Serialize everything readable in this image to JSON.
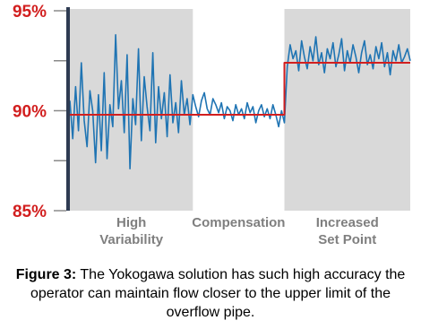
{
  "chart_data": {
    "type": "line",
    "xlim": [
      0,
      119
    ],
    "ylim": [
      85,
      95
    ],
    "yticks": [
      {
        "value": 85,
        "label": "85%"
      },
      {
        "value": 90,
        "label": "90%"
      },
      {
        "value": 95,
        "label": "95%"
      }
    ],
    "minor_yticks": [
      87.5,
      92.5
    ],
    "tick_label_color": "#d21f1f",
    "axis_color": "#2e3b52",
    "shade_color": "#d9d9d9",
    "region_label_color": "#7f7f7f",
    "regions": [
      {
        "label": [
          "High",
          "Variability"
        ],
        "start": 0,
        "end": 43,
        "shaded": true
      },
      {
        "label": [
          "Compensation"
        ],
        "start": 43,
        "end": 75,
        "shaded": false
      },
      {
        "label": [
          "Increased",
          "Set Point"
        ],
        "start": 75,
        "end": 119,
        "shaded": true
      }
    ],
    "series": [
      {
        "color": "#1f74b3",
        "values": [
          90.5,
          88.6,
          91.2,
          89.0,
          92.4,
          89.5,
          88.2,
          91.0,
          90.0,
          87.4,
          90.8,
          88.0,
          91.9,
          87.6,
          90.3,
          89.2,
          93.8,
          90.1,
          91.5,
          88.9,
          92.8,
          87.1,
          90.6,
          89.3,
          93.1,
          88.5,
          91.7,
          90.2,
          89.0,
          92.9,
          88.4,
          91.2,
          89.6,
          90.9,
          88.7,
          91.8,
          89.4,
          90.4,
          88.9,
          91.5,
          89.8,
          90.6,
          89.3,
          90.8,
          90.2,
          89.7,
          90.5,
          90.9,
          90.1,
          89.8,
          90.6,
          90.3,
          89.9,
          90.4,
          89.6,
          90.2,
          90.0,
          89.5,
          90.3,
          89.8,
          90.1,
          89.6,
          90.4,
          89.9,
          90.2,
          89.4,
          90.0,
          90.3,
          89.7,
          90.1,
          89.6,
          90.3,
          89.8,
          89.2,
          90.0,
          89.4,
          92.2,
          93.3,
          92.6,
          93.0,
          92.0,
          93.5,
          92.7,
          92.1,
          93.2,
          92.5,
          93.7,
          92.3,
          92.9,
          91.9,
          93.1,
          92.6,
          93.4,
          92.2,
          92.8,
          93.6,
          92.0,
          93.0,
          92.4,
          93.3,
          92.7,
          91.9,
          92.9,
          93.5,
          92.3,
          92.8,
          92.1,
          93.2,
          92.6,
          93.4,
          92.2,
          92.9,
          91.8,
          93.0,
          92.5,
          93.3,
          92.4,
          92.7,
          93.1,
          92.5
        ]
      },
      {
        "color": "#d21f1f",
        "x": [
          0,
          75,
          75,
          119
        ],
        "values": [
          89.8,
          89.8,
          92.4,
          92.4
        ]
      }
    ]
  },
  "caption": {
    "label": "Figure 3:",
    "text": "The Yokogawa solution has such high accuracy the operator can maintain flow closer to the upper limit of the overflow pipe."
  }
}
